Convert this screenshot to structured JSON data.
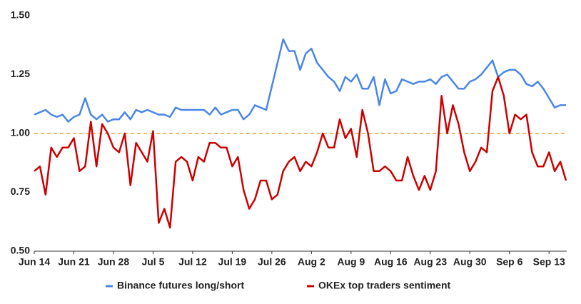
{
  "chart_data": {
    "type": "line",
    "categories": [
      "Jun 14",
      null,
      null,
      null,
      null,
      null,
      null,
      "Jun 21",
      null,
      null,
      null,
      null,
      null,
      null,
      "Jun 28",
      null,
      null,
      null,
      null,
      null,
      null,
      "Jul 5",
      null,
      null,
      null,
      null,
      null,
      null,
      "Jul 12",
      null,
      null,
      null,
      null,
      null,
      null,
      "Jul 19",
      null,
      null,
      null,
      null,
      null,
      null,
      "Jul 26",
      null,
      null,
      null,
      null,
      null,
      null,
      "Aug 2",
      null,
      null,
      null,
      null,
      null,
      null,
      "Aug 9",
      null,
      null,
      null,
      null,
      null,
      null,
      "Aug 16",
      null,
      null,
      null,
      null,
      null,
      null,
      "Aug 23",
      null,
      null,
      null,
      null,
      null,
      null,
      "Aug 30",
      null,
      null,
      null,
      null,
      null,
      null,
      "Sep 6",
      null,
      null,
      null,
      null,
      null,
      null,
      "Sep 13",
      null,
      null,
      null
    ],
    "series": [
      {
        "name": "Binance futures long/short",
        "color": "#4a86e8",
        "values": [
          1.08,
          1.09,
          1.1,
          1.08,
          1.07,
          1.08,
          1.05,
          1.07,
          1.08,
          1.15,
          1.08,
          1.06,
          1.08,
          1.05,
          1.06,
          1.06,
          1.09,
          1.06,
          1.1,
          1.09,
          1.1,
          1.09,
          1.08,
          1.08,
          1.07,
          1.11,
          1.1,
          1.1,
          1.1,
          1.1,
          1.1,
          1.08,
          1.11,
          1.08,
          1.09,
          1.1,
          1.1,
          1.06,
          1.08,
          1.12,
          1.11,
          1.1,
          1.2,
          1.3,
          1.4,
          1.35,
          1.35,
          1.27,
          1.34,
          1.36,
          1.3,
          1.27,
          1.24,
          1.22,
          1.18,
          1.24,
          1.22,
          1.25,
          1.19,
          1.19,
          1.24,
          1.12,
          1.23,
          1.17,
          1.18,
          1.23,
          1.22,
          1.21,
          1.22,
          1.22,
          1.23,
          1.21,
          1.24,
          1.25,
          1.22,
          1.19,
          1.19,
          1.22,
          1.23,
          1.25,
          1.28,
          1.31,
          1.24,
          1.26,
          1.27,
          1.27,
          1.25,
          1.21,
          1.2,
          1.22,
          1.19,
          1.15,
          1.11,
          1.12,
          1.12
        ]
      },
      {
        "name": "OKEx top traders sentiment",
        "color": "#cc0000",
        "values": [
          0.84,
          0.86,
          0.74,
          0.94,
          0.9,
          0.94,
          0.94,
          0.98,
          0.84,
          0.86,
          1.05,
          0.86,
          1.04,
          1.0,
          0.94,
          0.92,
          1.0,
          0.78,
          0.96,
          0.92,
          0.88,
          1.01,
          0.62,
          0.68,
          0.6,
          0.88,
          0.9,
          0.88,
          0.8,
          0.9,
          0.88,
          0.96,
          0.96,
          0.94,
          0.94,
          0.86,
          0.9,
          0.76,
          0.68,
          0.72,
          0.8,
          0.8,
          0.72,
          0.74,
          0.84,
          0.88,
          0.9,
          0.84,
          0.88,
          0.86,
          0.92,
          1.0,
          0.94,
          0.94,
          1.06,
          0.98,
          1.02,
          0.9,
          1.1,
          1.0,
          0.84,
          0.84,
          0.86,
          0.84,
          0.8,
          0.8,
          0.9,
          0.82,
          0.76,
          0.82,
          0.76,
          0.84,
          1.16,
          1.0,
          1.12,
          1.04,
          0.92,
          0.84,
          0.88,
          0.94,
          0.92,
          1.18,
          1.24,
          1.16,
          1.0,
          1.08,
          1.06,
          1.08,
          0.92,
          0.86,
          0.86,
          0.92,
          0.84,
          0.88,
          0.8
        ]
      }
    ],
    "reference_line": {
      "value": 1,
      "color": "#f0a030"
    },
    "ylim": [
      0.5,
      1.5
    ],
    "yticks": [
      {
        "value": 0.5,
        "label": "0.50"
      },
      {
        "value": 0.75,
        "label": "0.75"
      },
      {
        "value": 1,
        "label": "1.00"
      },
      {
        "value": 1.25,
        "label": "1.25"
      },
      {
        "value": 1.5,
        "label": "1.50"
      }
    ],
    "grid": false,
    "legend": "bottom"
  }
}
